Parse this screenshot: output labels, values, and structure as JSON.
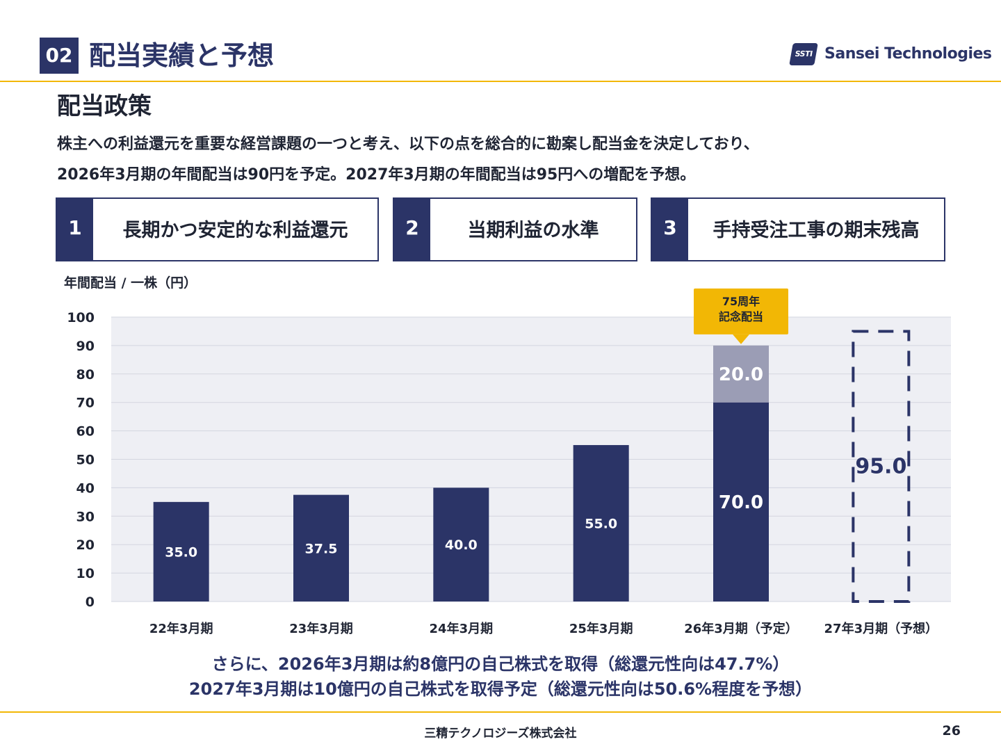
{
  "header": {
    "section_number": "02",
    "title": "配当実績と予想",
    "logo_mark": "SSTI",
    "logo_text": "Sansei Technologies"
  },
  "section_title": "配当政策",
  "body_lines": [
    "株主への利益還元を重要な経営課題の一つと考え、以下の点を総合的に勘案し配当金を決定しており、",
    "2026年3月期の年間配当は90円を予定。2027年3月期の年間配当は95円への増配を予想。"
  ],
  "policies": [
    {
      "number": "1",
      "label": "長期かつ安定的な利益還元"
    },
    {
      "number": "2",
      "label": "当期利益の水準"
    },
    {
      "number": "3",
      "label": "手持受注工事の期末残高"
    }
  ],
  "chart_data": {
    "type": "bar",
    "stacked": true,
    "ylabel": "年間配当 / 一株（円）",
    "ylim": [
      0,
      100
    ],
    "yticks": [
      0,
      10,
      20,
      30,
      40,
      50,
      60,
      70,
      80,
      90,
      100
    ],
    "grid": true,
    "categories": [
      "22年3月期",
      "23年3月期",
      "24年3月期",
      "25年3月期",
      "26年3月期（予定）",
      "27年3月期（予想）"
    ],
    "series": [
      {
        "values": [
          35.0,
          37.5,
          40.0,
          55.0,
          70.0,
          null
        ],
        "labels": [
          "35.0",
          "37.5",
          "40.0",
          "55.0",
          "70.0",
          ""
        ],
        "color": "#2b3467"
      },
      {
        "values": [
          null,
          null,
          null,
          null,
          20.0,
          null
        ],
        "labels": [
          "",
          "",
          "",
          "",
          "20.0",
          ""
        ],
        "color": "#9b9db5"
      },
      {
        "values": [
          null,
          null,
          null,
          null,
          null,
          95.0
        ],
        "labels": [
          "",
          "",
          "",
          "",
          "",
          "95.0"
        ],
        "style": "dashed-outline",
        "color": "#2b3467"
      }
    ],
    "annotations": [
      {
        "category": "26年3月期（予定）",
        "text_lines": [
          "75周年",
          "記念配当"
        ],
        "color": "#f2b705"
      }
    ]
  },
  "footnotes": [
    "さらに、2026年3月期は約8億円の自己株式を取得（総還元性向は47.7%）",
    "2027年3月期は10億円の自己株式を取得予定（総還元性向は50.6%程度を予想）"
  ],
  "footer": {
    "company": "三精テクノロジーズ株式会社",
    "page": "26"
  }
}
